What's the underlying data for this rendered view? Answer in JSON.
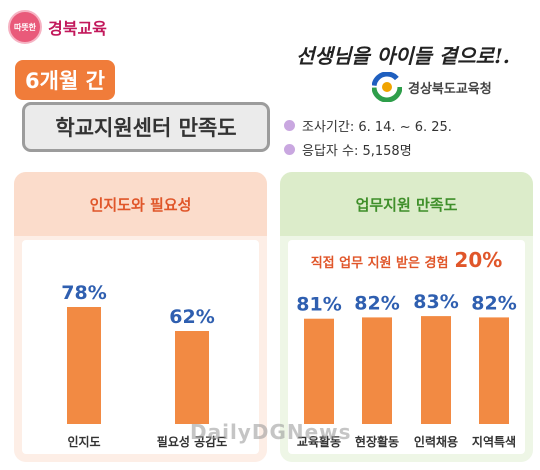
{
  "brand": {
    "seal_text": "따뜻한",
    "name": "경북교육"
  },
  "header": {
    "period": "6개월 간",
    "title": "학교지원센터 만족도",
    "slogan": "선생님을 아이들 곁으로!.",
    "org_name": "경상북도교육청"
  },
  "info": {
    "survey_period": "조사기간: 6. 14. ~ 6. 25.",
    "respondents": "응답자 수: 5,158명"
  },
  "panels": {
    "left_title": "인지도와 필요성",
    "right_title": "업무지원 만족도",
    "right_note_label": "직접 업무 지원 받은 경험",
    "right_note_value": "20%"
  },
  "watermark": "DailyDGNews",
  "colors": {
    "bar": "#f28a43",
    "bar_light": "#f6a86e",
    "value": "#2f5fb0",
    "accent": "#e0562a"
  },
  "chart_data": [
    {
      "type": "bar",
      "title": "인지도와 필요성",
      "categories": [
        "인지도",
        "필요성 공감도"
      ],
      "values": [
        78,
        62
      ],
      "labels": [
        "78%",
        "62%"
      ],
      "ylim": [
        0,
        100
      ]
    },
    {
      "type": "bar",
      "title": "업무지원 만족도",
      "categories": [
        "교육활동",
        "현장활동",
        "인력채용",
        "지역특색"
      ],
      "values": [
        81,
        82,
        83,
        82
      ],
      "labels": [
        "81%",
        "82%",
        "83%",
        "82%"
      ],
      "ylim": [
        0,
        100
      ]
    }
  ]
}
